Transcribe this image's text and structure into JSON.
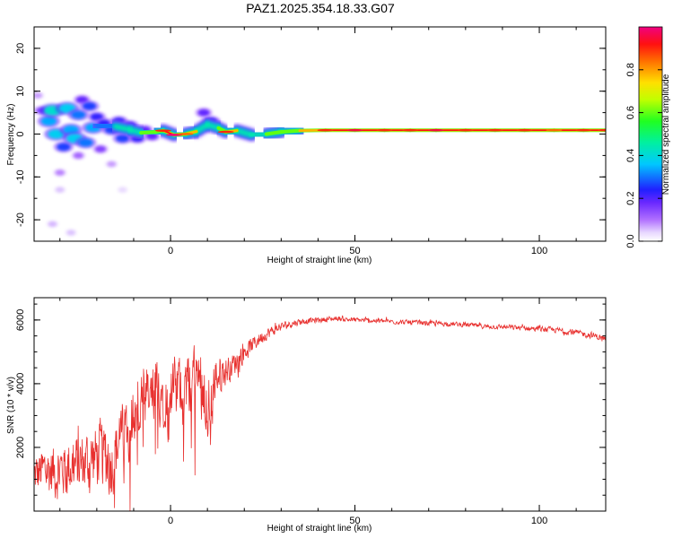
{
  "figure_title": "PAZ1.2025.354.18.33.G07",
  "colors": {
    "snr_line": "#e8302e",
    "frame": "#000000",
    "ridge": [
      "#a040ff",
      "#3a2cff",
      "#00d8ff",
      "#34ff66",
      "#ffe000",
      "#ff7000",
      "#e0103a"
    ]
  },
  "chart_data": [
    {
      "id": "spectrogram",
      "type": "heatmap",
      "xlabel": "Height of straight line (km)",
      "ylabel": "Frequency (Hz)",
      "xlim": [
        -37,
        118
      ],
      "ylim": [
        -25,
        25
      ],
      "xticks": [
        0,
        50,
        100
      ],
      "yticks": [
        -20,
        -10,
        0,
        10,
        20
      ],
      "blobs": [
        {
          "x": -35,
          "y": 5.5,
          "a": 0.2
        },
        {
          "x": -33,
          "y": 3,
          "a": 0.45
        },
        {
          "x": -32,
          "y": 5.5,
          "a": 0.55
        },
        {
          "x": -31,
          "y": 0,
          "a": 0.5
        },
        {
          "x": -29,
          "y": -3,
          "a": 0.35
        },
        {
          "x": -28,
          "y": 6,
          "a": 0.5
        },
        {
          "x": -27,
          "y": 1,
          "a": 0.45
        },
        {
          "x": -26,
          "y": -1,
          "a": 0.5
        },
        {
          "x": -25,
          "y": 4.5,
          "a": 0.4
        },
        {
          "x": -24,
          "y": 8,
          "a": 0.25
        },
        {
          "x": -23,
          "y": -2,
          "a": 0.4
        },
        {
          "x": -22,
          "y": 6.5,
          "a": 0.35
        },
        {
          "x": -21,
          "y": 1.5,
          "a": 0.45
        },
        {
          "x": -20,
          "y": 4,
          "a": 0.3
        },
        {
          "x": -19,
          "y": -3.5,
          "a": 0.2
        },
        {
          "x": -18,
          "y": 2.5,
          "a": 0.3
        },
        {
          "x": -16,
          "y": 1,
          "a": 0.35
        },
        {
          "x": -14,
          "y": 3,
          "a": 0.3
        },
        {
          "x": -13,
          "y": -1,
          "a": 0.35
        },
        {
          "x": -11,
          "y": 2,
          "a": 0.3
        },
        {
          "x": -9,
          "y": -1,
          "a": 0.3
        },
        {
          "x": -7,
          "y": 1,
          "a": 0.25
        },
        {
          "x": -5,
          "y": -0.5,
          "a": 0.25
        },
        {
          "x": 9,
          "y": 5,
          "a": 0.25
        },
        {
          "x": 11,
          "y": 3,
          "a": 0.3
        },
        {
          "x": -30,
          "y": -9,
          "a": 0.12
        },
        {
          "x": -25,
          "y": -5,
          "a": 0.15
        },
        {
          "x": -16,
          "y": -7,
          "a": 0.1
        },
        {
          "x": -32,
          "y": -21,
          "a": 0.08
        },
        {
          "x": -27,
          "y": -23,
          "a": 0.07
        },
        {
          "x": -30,
          "y": -13,
          "a": 0.07
        },
        {
          "x": -36,
          "y": 9,
          "a": 0.1
        },
        {
          "x": -13,
          "y": -13,
          "a": 0.05
        }
      ],
      "ridge": [
        {
          "x": -20,
          "y": 2,
          "a": 0.35
        },
        {
          "x": -15,
          "y": 1.8,
          "a": 0.4
        },
        {
          "x": -11,
          "y": 1,
          "a": 0.5
        },
        {
          "x": -8,
          "y": 0.3,
          "a": 0.55
        },
        {
          "x": -4,
          "y": 0.5,
          "a": 0.65
        },
        {
          "x": -2,
          "y": 0.8,
          "a": 0.85
        },
        {
          "x": 1,
          "y": -0.2,
          "a": 0.95
        },
        {
          "x": 4,
          "y": 0,
          "a": 0.8
        },
        {
          "x": 7,
          "y": 0.6,
          "a": 0.75
        },
        {
          "x": 10,
          "y": 2.2,
          "a": 0.5
        },
        {
          "x": 13,
          "y": 1.4,
          "a": 0.6
        },
        {
          "x": 15,
          "y": 0.5,
          "a": 0.85
        },
        {
          "x": 18,
          "y": 0.8,
          "a": 0.7
        },
        {
          "x": 22,
          "y": -0.2,
          "a": 0.5
        },
        {
          "x": 26,
          "y": 0,
          "a": 0.55
        },
        {
          "x": 30,
          "y": 0.5,
          "a": 0.6
        },
        {
          "x": 35,
          "y": 0.8,
          "a": 0.75
        },
        {
          "x": 42,
          "y": 0.9,
          "a": 0.85
        },
        {
          "x": 50,
          "y": 0.9,
          "a": 0.9
        },
        {
          "x": 58,
          "y": 0.9,
          "a": 0.85
        },
        {
          "x": 65,
          "y": 0.9,
          "a": 0.85
        },
        {
          "x": 72,
          "y": 0.9,
          "a": 0.9
        },
        {
          "x": 80,
          "y": 0.9,
          "a": 0.85
        },
        {
          "x": 88,
          "y": 0.9,
          "a": 0.85
        },
        {
          "x": 96,
          "y": 0.9,
          "a": 0.85
        },
        {
          "x": 104,
          "y": 0.9,
          "a": 0.8
        },
        {
          "x": 112,
          "y": 0.9,
          "a": 0.85
        },
        {
          "x": 118,
          "y": 0.9,
          "a": 0.85
        }
      ],
      "colorbar": {
        "label": "Normalized spectral amplitude",
        "range": [
          0,
          1
        ],
        "ticks": [
          0.0,
          0.2,
          0.4,
          0.6,
          0.8
        ],
        "tick_labels": [
          "0.0",
          "0.2",
          "0.4",
          "0.6",
          "0.8"
        ]
      }
    },
    {
      "id": "snr",
      "type": "line",
      "xlabel": "Height of straight line (km)",
      "ylabel": "SNR (10 * v/v)",
      "xlim": [
        -37,
        118
      ],
      "ylim": [
        0,
        6700
      ],
      "xticks": [
        0,
        50,
        100
      ],
      "yticks": [
        2000,
        4000,
        6000
      ],
      "series": [
        {
          "name": "SNR",
          "x": [
            -37,
            -34,
            -31,
            -28,
            -25,
            -22,
            -19,
            -16,
            -13,
            -10,
            -7,
            -4,
            -1,
            2,
            5,
            8,
            10,
            11,
            12,
            14,
            17,
            20,
            25,
            30,
            35,
            40,
            45,
            50,
            55,
            60,
            65,
            70,
            75,
            80,
            85,
            90,
            95,
            100,
            105,
            110,
            115,
            118
          ],
          "y": [
            1100,
            1300,
            1250,
            1400,
            1450,
            1600,
            1800,
            1500,
            2500,
            3000,
            3300,
            3700,
            3800,
            3900,
            4000,
            4200,
            3600,
            2500,
            4300,
            4300,
            4600,
            5000,
            5500,
            5800,
            5950,
            6000,
            6050,
            6000,
            5980,
            5950,
            5920,
            5900,
            5880,
            5850,
            5800,
            5780,
            5750,
            5720,
            5680,
            5600,
            5500,
            5400
          ],
          "noise": [
            900,
            1100,
            1200,
            1250,
            1300,
            1350,
            1400,
            1450,
            1400,
            1500,
            1450,
            1400,
            1300,
            1200,
            1300,
            1500,
            1700,
            1400,
            1100,
            700,
            500,
            400,
            280,
            180,
            140,
            120,
            110,
            100,
            100,
            100,
            100,
            100,
            100,
            100,
            100,
            100,
            110,
            110,
            120,
            130,
            140,
            150
          ]
        }
      ]
    }
  ]
}
